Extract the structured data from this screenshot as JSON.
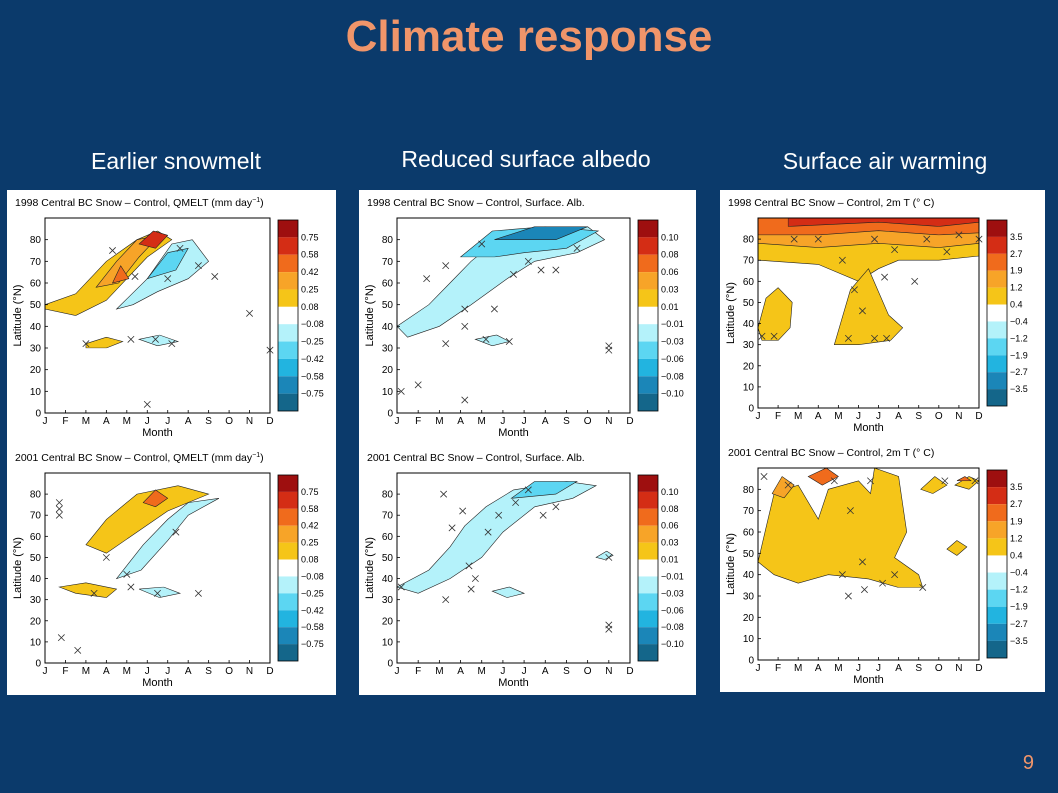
{
  "slide": {
    "title": "Climate response",
    "page_number": "9",
    "columns": [
      "Earlier snowmelt",
      "Reduced surface albedo",
      "Surface air warming"
    ],
    "background_color": "#0b3a6b",
    "title_color": "#f0956a"
  },
  "chart_data": [
    {
      "type": "heatmap",
      "title": "1998 Central BC Snow – Control, QMELT (mm day",
      "title_suffix": "−1",
      "title_end": ")",
      "xlabel": "Month",
      "ylabel": "Latitude (°N)",
      "x_ticks": [
        "J",
        "F",
        "M",
        "A",
        "M",
        "J",
        "J",
        "A",
        "S",
        "O",
        "N",
        "D"
      ],
      "y_ticks": [
        "0",
        "10",
        "20",
        "30",
        "40",
        "50",
        "60",
        "70",
        "80"
      ],
      "colorbar_labels": [
        "0.75",
        "0.58",
        "0.42",
        "0.25",
        "0.08",
        "−0.08",
        "−0.25",
        "−0.42",
        "−0.58",
        "−0.75"
      ],
      "colors": [
        "#9e0f0f",
        "#d42d15",
        "#f06b1c",
        "#f7a428",
        "#f5c518",
        "#ffffff",
        "#b4f2fa",
        "#5cd6f2",
        "#22b4e0",
        "#1b86b8",
        "#14668a"
      ]
    },
    {
      "type": "heatmap",
      "title": "2001 Central BC Snow – Control, QMELT (mm day",
      "title_suffix": "−1",
      "title_end": ")",
      "xlabel": "Month",
      "ylabel": "Latitude (°N)",
      "x_ticks": [
        "J",
        "F",
        "M",
        "A",
        "M",
        "J",
        "J",
        "A",
        "S",
        "O",
        "N",
        "D"
      ],
      "y_ticks": [
        "0",
        "10",
        "20",
        "30",
        "40",
        "50",
        "60",
        "70",
        "80"
      ],
      "colorbar_labels": [
        "0.75",
        "0.58",
        "0.42",
        "0.25",
        "0.08",
        "−0.08",
        "−0.25",
        "−0.42",
        "−0.58",
        "−0.75"
      ],
      "colors": [
        "#9e0f0f",
        "#d42d15",
        "#f06b1c",
        "#f7a428",
        "#f5c518",
        "#ffffff",
        "#b4f2fa",
        "#5cd6f2",
        "#22b4e0",
        "#1b86b8",
        "#14668a"
      ]
    },
    {
      "type": "heatmap",
      "title": "1998 Central BC Snow – Control, Surface. Alb.",
      "xlabel": "Month",
      "ylabel": "Latitude (°N)",
      "x_ticks": [
        "J",
        "F",
        "M",
        "A",
        "M",
        "J",
        "J",
        "A",
        "S",
        "O",
        "N",
        "D"
      ],
      "y_ticks": [
        "0",
        "10",
        "20",
        "30",
        "40",
        "50",
        "60",
        "70",
        "80"
      ],
      "colorbar_labels": [
        "0.10",
        "0.08",
        "0.06",
        "0.03",
        "0.01",
        "−0.01",
        "−0.03",
        "−0.06",
        "−0.08",
        "−0.10"
      ],
      "colors": [
        "#9e0f0f",
        "#d42d15",
        "#f06b1c",
        "#f7a428",
        "#f5c518",
        "#ffffff",
        "#b4f2fa",
        "#5cd6f2",
        "#22b4e0",
        "#1b86b8",
        "#14668a"
      ]
    },
    {
      "type": "heatmap",
      "title": "2001 Central BC Snow – Control, Surface. Alb.",
      "xlabel": "Month",
      "ylabel": "Latitude (°N)",
      "x_ticks": [
        "J",
        "F",
        "M",
        "A",
        "M",
        "J",
        "J",
        "A",
        "S",
        "O",
        "N",
        "D"
      ],
      "y_ticks": [
        "0",
        "10",
        "20",
        "30",
        "40",
        "50",
        "60",
        "70",
        "80"
      ],
      "colorbar_labels": [
        "0.10",
        "0.08",
        "0.06",
        "0.03",
        "0.01",
        "−0.01",
        "−0.03",
        "−0.06",
        "−0.08",
        "−0.10"
      ],
      "colors": [
        "#9e0f0f",
        "#d42d15",
        "#f06b1c",
        "#f7a428",
        "#f5c518",
        "#ffffff",
        "#b4f2fa",
        "#5cd6f2",
        "#22b4e0",
        "#1b86b8",
        "#14668a"
      ]
    },
    {
      "type": "heatmap",
      "title": "1998 Central BC Snow – Control, 2m T (° C)",
      "xlabel": "Month",
      "ylabel": "Latitude (°N)",
      "x_ticks": [
        "J",
        "F",
        "M",
        "A",
        "M",
        "J",
        "J",
        "A",
        "S",
        "O",
        "N",
        "D"
      ],
      "y_ticks": [
        "0",
        "10",
        "20",
        "30",
        "40",
        "50",
        "60",
        "70",
        "80"
      ],
      "colorbar_labels": [
        "3.5",
        "2.7",
        "1.9",
        "1.2",
        "0.4",
        "−0.4",
        "−1.2",
        "−1.9",
        "−2.7",
        "−3.5"
      ],
      "colors": [
        "#9e0f0f",
        "#d42d15",
        "#f06b1c",
        "#f7a428",
        "#f5c518",
        "#ffffff",
        "#b4f2fa",
        "#5cd6f2",
        "#22b4e0",
        "#1b86b8",
        "#14668a"
      ]
    },
    {
      "type": "heatmap",
      "title": "2001 Central BC Snow – Control, 2m T (° C)",
      "xlabel": "Month",
      "ylabel": "Latitude (°N)",
      "x_ticks": [
        "J",
        "F",
        "M",
        "A",
        "M",
        "J",
        "J",
        "A",
        "S",
        "O",
        "N",
        "D"
      ],
      "y_ticks": [
        "0",
        "10",
        "20",
        "30",
        "40",
        "50",
        "60",
        "70",
        "80"
      ],
      "colorbar_labels": [
        "3.5",
        "2.7",
        "1.9",
        "1.2",
        "0.4",
        "−0.4",
        "−1.2",
        "−1.9",
        "−2.7",
        "−3.5"
      ],
      "colors": [
        "#9e0f0f",
        "#d42d15",
        "#f06b1c",
        "#f7a428",
        "#f5c518",
        "#ffffff",
        "#b4f2fa",
        "#5cd6f2",
        "#22b4e0",
        "#1b86b8",
        "#14668a"
      ]
    }
  ]
}
